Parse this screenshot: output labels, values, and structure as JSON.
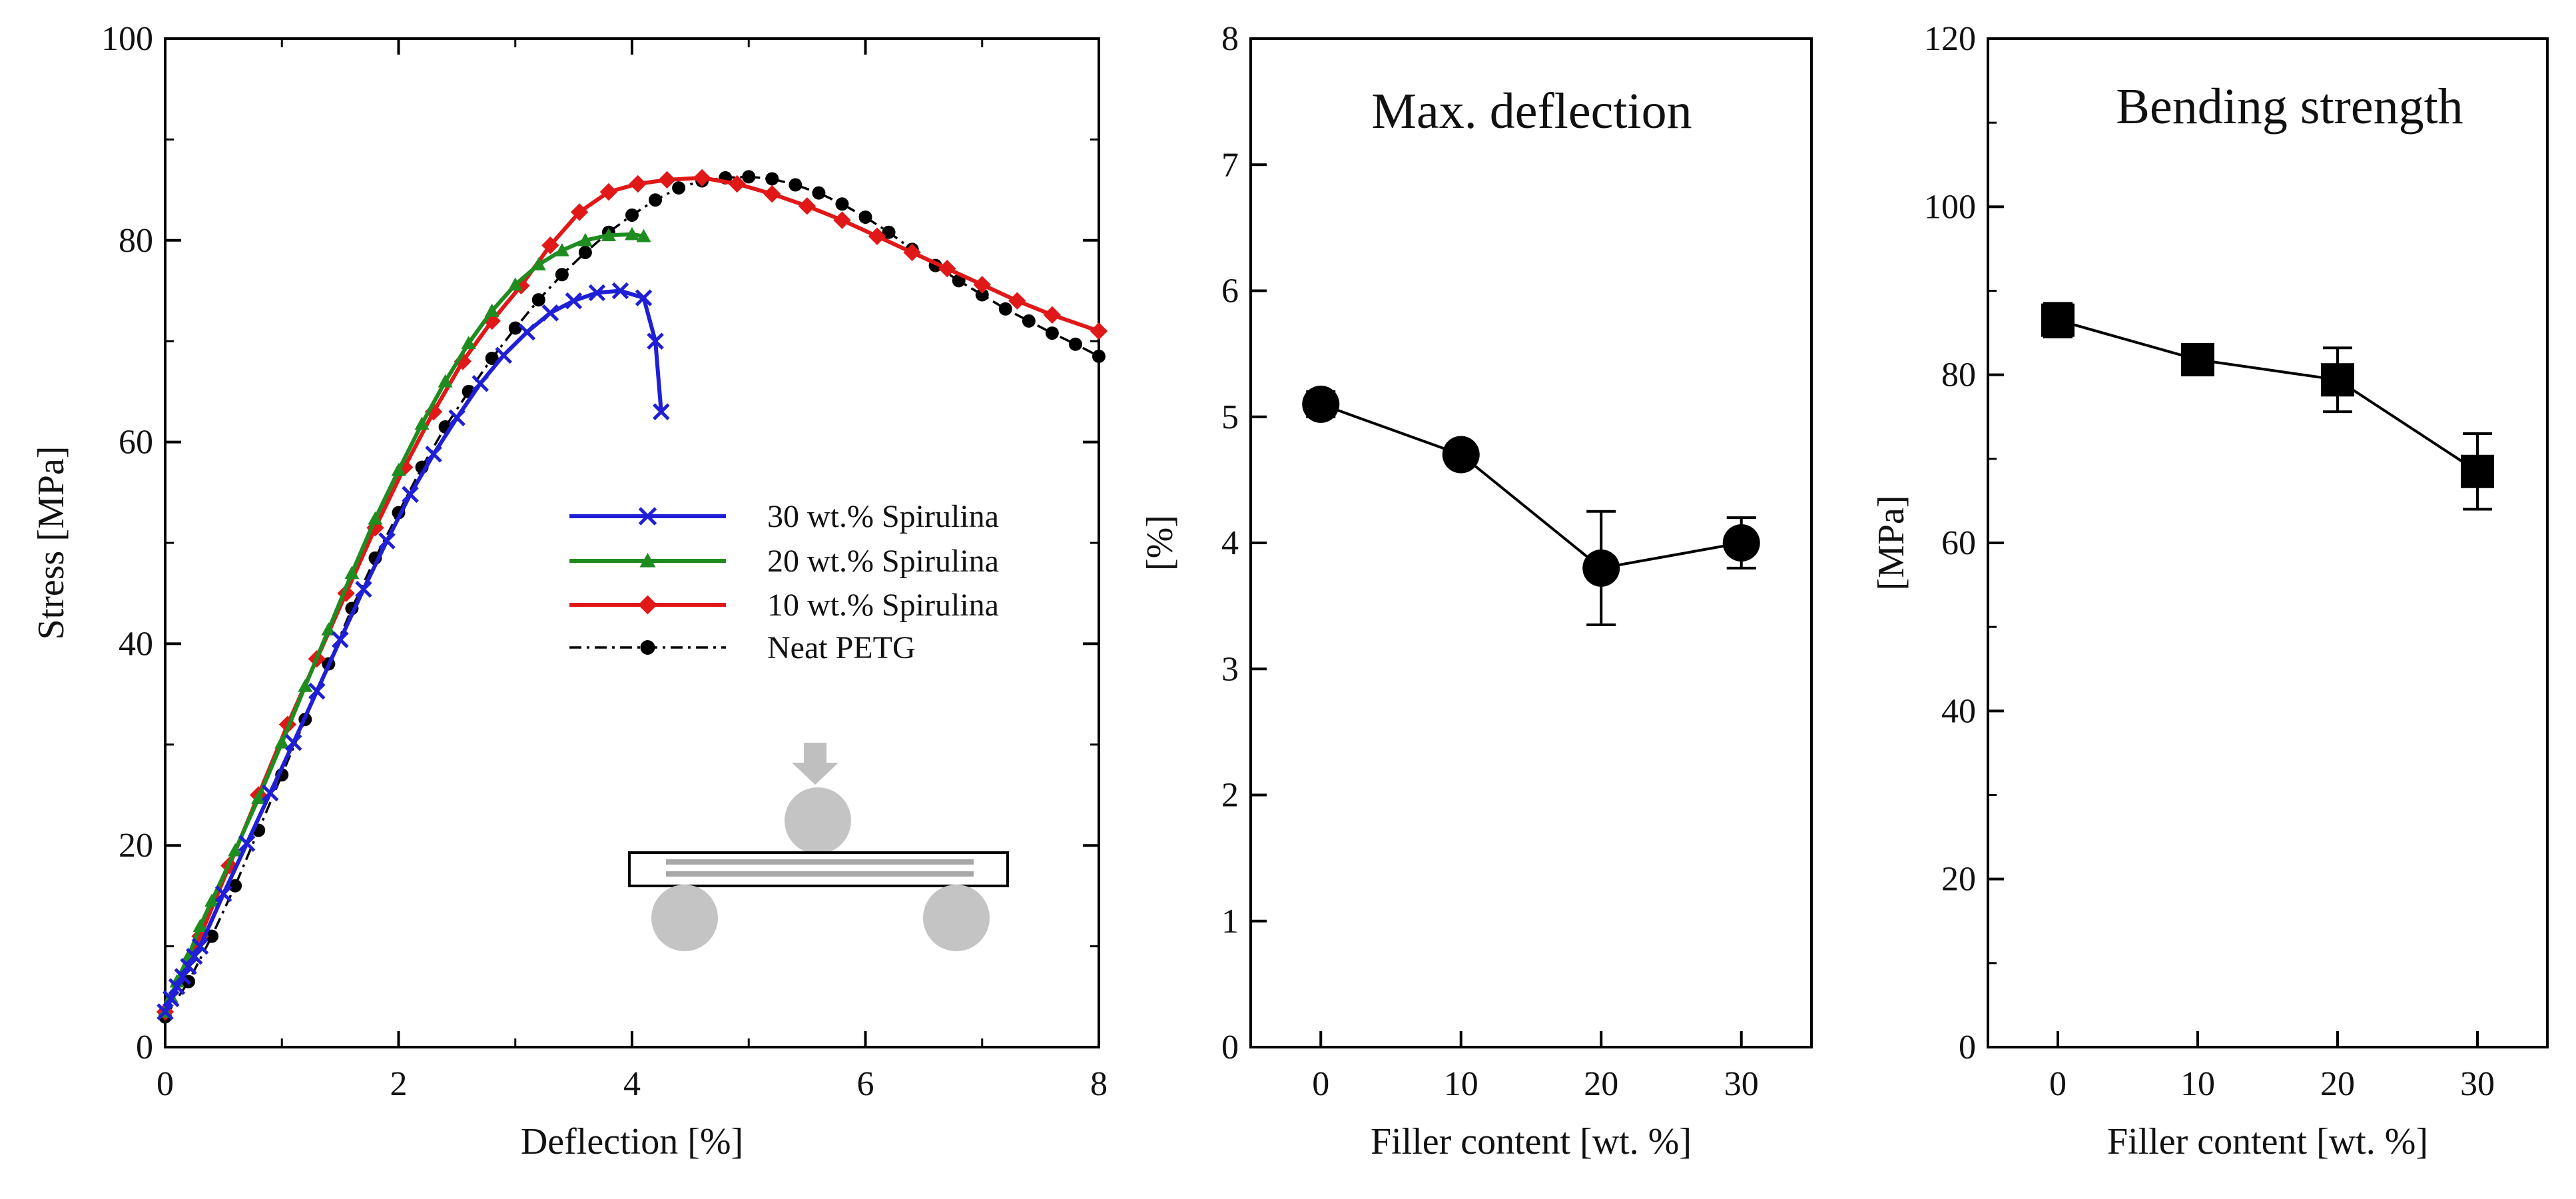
{
  "chart_data": [
    {
      "type": "line",
      "xlabel": "Deflection [%]",
      "ylabel": "Stress [MPa]",
      "xlim": [
        0,
        8
      ],
      "ylim": [
        0,
        100
      ],
      "xticks": [
        "0",
        "2",
        "4",
        "6",
        "8"
      ],
      "yticks": [
        "0",
        "20",
        "40",
        "60",
        "80",
        "100"
      ],
      "legend_position": "center",
      "series": [
        {
          "name": "30 wt.% Spirulina",
          "color": "#1f1fd6",
          "marker": "x",
          "line_style": "solid",
          "x": [
            0.0,
            0.05,
            0.1,
            0.15,
            0.2,
            0.25,
            0.3,
            0.5,
            0.7,
            0.9,
            1.1,
            1.3,
            1.5,
            1.7,
            1.9,
            2.1,
            2.3,
            2.5,
            2.7,
            2.9,
            3.1,
            3.3,
            3.5,
            3.7,
            3.9,
            4.1,
            4.2,
            4.25
          ],
          "y": [
            3.5,
            4.8,
            6.0,
            7.0,
            8.0,
            9.0,
            10.0,
            15.2,
            20.2,
            25.2,
            30.2,
            35.3,
            40.4,
            45.4,
            50.2,
            54.8,
            58.8,
            62.4,
            65.8,
            68.6,
            70.9,
            72.8,
            74.0,
            74.8,
            75.0,
            74.3,
            70.0,
            63.0
          ]
        },
        {
          "name": "20 wt.% Spirulina",
          "color": "#1e8c1e",
          "marker": "triangle",
          "line_style": "solid",
          "x": [
            0.0,
            0.05,
            0.1,
            0.2,
            0.3,
            0.4,
            0.6,
            0.8,
            1.0,
            1.2,
            1.4,
            1.6,
            1.8,
            2.0,
            2.2,
            2.4,
            2.6,
            2.8,
            3.0,
            3.2,
            3.4,
            3.6,
            3.8,
            4.0,
            4.1
          ],
          "y": [
            3.5,
            5.0,
            6.5,
            9.0,
            12.0,
            14.5,
            19.5,
            24.7,
            30.2,
            35.8,
            41.4,
            47.0,
            52.4,
            57.2,
            61.8,
            66.0,
            69.8,
            73.0,
            75.6,
            77.6,
            79.0,
            80.0,
            80.5,
            80.6,
            80.4
          ]
        },
        {
          "name": "10 wt.% Spirulina",
          "color": "#e01818",
          "marker": "diamond",
          "line_style": "solid",
          "x": [
            0.0,
            0.3,
            0.55,
            0.8,
            1.05,
            1.3,
            1.55,
            1.8,
            2.05,
            2.3,
            2.55,
            2.8,
            3.05,
            3.3,
            3.55,
            3.8,
            4.05,
            4.3,
            4.6,
            4.9,
            5.2,
            5.5,
            5.8,
            6.1,
            6.4,
            6.7,
            7.0,
            7.3,
            7.6,
            8.0
          ],
          "y": [
            3.5,
            11.0,
            18.0,
            25.0,
            32.0,
            38.5,
            45.0,
            51.5,
            57.5,
            63.0,
            68.0,
            72.0,
            75.5,
            79.5,
            82.8,
            84.8,
            85.6,
            86.0,
            86.2,
            85.6,
            84.6,
            83.4,
            82.0,
            80.4,
            78.8,
            77.2,
            75.6,
            74.0,
            72.6,
            71.0
          ]
        },
        {
          "name": "Neat PETG",
          "color": "#000000",
          "marker": "circle",
          "line_style": "dash-dot",
          "x": [
            0.0,
            0.2,
            0.4,
            0.6,
            0.8,
            1.0,
            1.2,
            1.4,
            1.6,
            1.8,
            2.0,
            2.2,
            2.4,
            2.6,
            2.8,
            3.0,
            3.2,
            3.4,
            3.6,
            3.8,
            4.0,
            4.2,
            4.4,
            4.6,
            4.8,
            5.0,
            5.2,
            5.4,
            5.6,
            5.8,
            6.0,
            6.2,
            6.4,
            6.6,
            6.8,
            7.0,
            7.2,
            7.4,
            7.6,
            7.8,
            8.0
          ],
          "y": [
            3.0,
            6.5,
            11.0,
            16.0,
            21.5,
            27.0,
            32.5,
            38.0,
            43.5,
            48.5,
            53.0,
            57.5,
            61.5,
            65.0,
            68.3,
            71.3,
            74.1,
            76.6,
            78.8,
            80.8,
            82.5,
            84.0,
            85.2,
            85.9,
            86.2,
            86.3,
            86.1,
            85.5,
            84.7,
            83.6,
            82.3,
            80.8,
            79.1,
            77.5,
            76.0,
            74.6,
            73.2,
            72.0,
            70.8,
            69.7,
            68.5
          ]
        }
      ]
    },
    {
      "type": "scatter",
      "title": "Max. deflection",
      "xlabel": "Filler content [wt. %]",
      "ylabel": "[%]",
      "xlim": [
        -5,
        35
      ],
      "ylim": [
        0,
        8
      ],
      "xticks": [
        "0",
        "10",
        "20",
        "30"
      ],
      "yticks": [
        "0",
        "1",
        "2",
        "3",
        "4",
        "5",
        "6",
        "7",
        "8"
      ],
      "marker": "circle",
      "x": [
        0,
        10,
        20,
        30
      ],
      "y": [
        5.1,
        4.7,
        3.8,
        4.0
      ],
      "error": [
        0.1,
        0.07,
        0.45,
        0.2
      ]
    },
    {
      "type": "scatter",
      "title": "Bending strength",
      "xlabel": "Filler content [wt. %]",
      "ylabel": "[MPa]",
      "xlim": [
        -5,
        35
      ],
      "ylim": [
        0,
        120
      ],
      "xticks": [
        "0",
        "10",
        "20",
        "30"
      ],
      "yticks": [
        "0",
        "20",
        "40",
        "60",
        "80",
        "100",
        "120"
      ],
      "marker": "square",
      "x": [
        0,
        10,
        20,
        30
      ],
      "y": [
        86.5,
        81.8,
        79.4,
        68.5
      ],
      "error": [
        2.0,
        1.2,
        3.8,
        4.5
      ]
    }
  ]
}
